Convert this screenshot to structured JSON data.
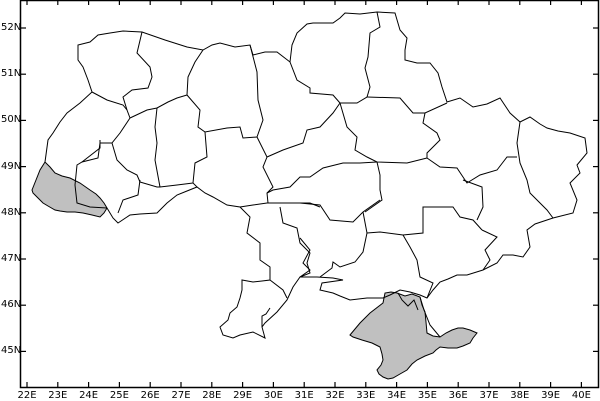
{
  "map": {
    "highlight_fill": "#c0c0c0",
    "border_color": "#000000",
    "background": "#ffffff",
    "highlighted_regions": [
      "zakarpattia",
      "crimea"
    ]
  },
  "axes": {
    "x_ticks": [
      "22E",
      "23E",
      "24E",
      "25E",
      "26E",
      "27E",
      "28E",
      "29E",
      "30E",
      "31E",
      "32E",
      "33E",
      "34E",
      "35E",
      "36E",
      "37E",
      "38E",
      "39E",
      "40E"
    ],
    "y_ticks": [
      "52N",
      "51N",
      "50N",
      "49N",
      "48N",
      "47N",
      "46N",
      "45N"
    ]
  }
}
